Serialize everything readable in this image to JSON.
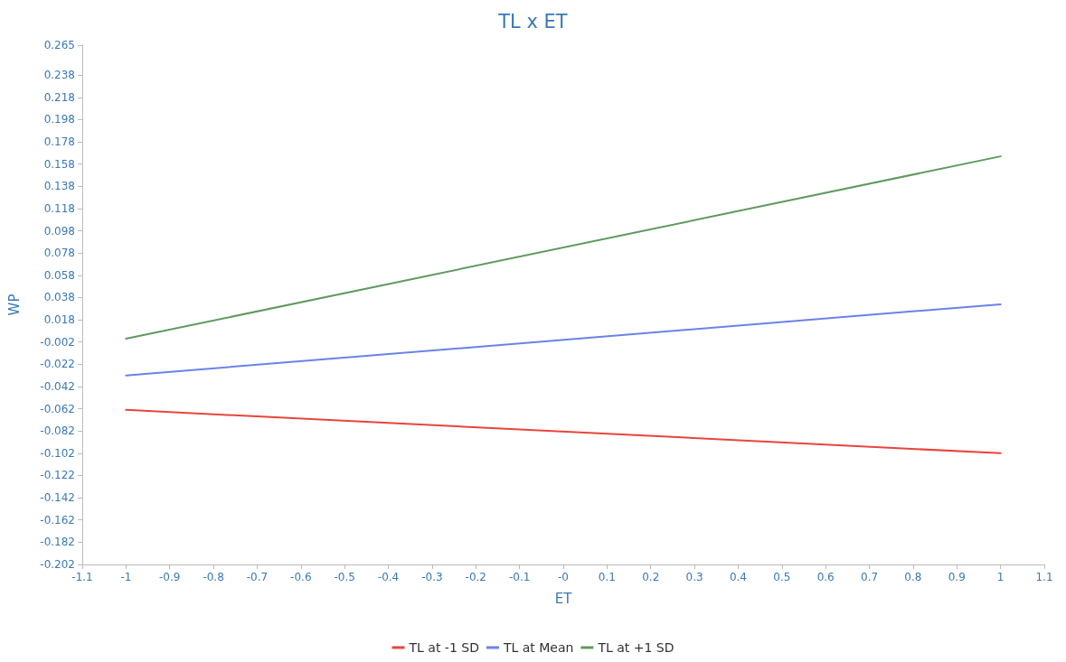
{
  "chart_data": {
    "type": "line",
    "title": "TL x ET",
    "xlabel": "ET",
    "ylabel": "WP",
    "x": [
      -1,
      1
    ],
    "series": [
      {
        "name": "TL at -1 SD",
        "color": "#e8453c",
        "values": [
          -0.063,
          -0.102
        ]
      },
      {
        "name": "TL at Mean",
        "color": "#6b82e8",
        "values": [
          -0.032,
          0.032
        ]
      },
      {
        "name": "TL at +1 SD",
        "color": "#5f9a5f",
        "values": [
          0.001,
          0.165
        ]
      }
    ],
    "xlim": [
      -1.1,
      1.1
    ],
    "xticks": [
      -1.1,
      -1,
      -0.9,
      -0.8,
      -0.7,
      -0.6,
      -0.5,
      -0.4,
      -0.3,
      -0.2,
      -0.1,
      {
        "value": 0,
        "label": "-0"
      },
      0.1,
      0.2,
      0.3,
      0.4,
      0.5,
      0.6,
      0.7,
      0.8,
      0.9,
      1,
      1.1
    ],
    "ylim": [
      -0.202,
      0.265
    ],
    "yticks": [
      -0.202,
      -0.182,
      -0.162,
      -0.142,
      -0.122,
      -0.102,
      -0.082,
      -0.062,
      -0.042,
      -0.022,
      -0.002,
      0.018,
      0.038,
      0.058,
      0.078,
      0.098,
      0.118,
      0.138,
      0.158,
      0.178,
      0.198,
      0.218,
      0.238,
      0.265
    ],
    "grid": false,
    "legend": "bottom",
    "marker": "none",
    "line_style": "solid"
  }
}
